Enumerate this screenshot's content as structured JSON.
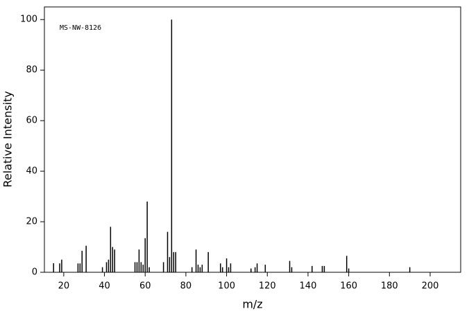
{
  "chart_data": {
    "type": "stem",
    "annotation": "MS-NW-8126",
    "x_label": "m/z",
    "y_label": "Relative Intensity",
    "color": "#000000",
    "x": [
      15,
      18,
      19,
      27,
      28,
      29,
      31,
      39,
      41,
      42,
      43,
      44,
      45,
      55,
      56,
      57,
      58,
      59,
      60,
      61,
      62,
      69,
      71,
      72,
      73,
      74,
      75,
      83,
      85,
      86,
      87,
      88,
      91,
      97,
      98,
      100,
      101,
      102,
      112,
      114,
      115,
      119,
      131,
      132,
      142,
      147,
      148,
      159,
      160,
      190
    ],
    "values": [
      3.6,
      3.5,
      5,
      3.5,
      3.5,
      8.5,
      10.5,
      2,
      4,
      5,
      18,
      10,
      9,
      4,
      4,
      9,
      4,
      3,
      13.5,
      28,
      2,
      4,
      16,
      6,
      100,
      8,
      8,
      2,
      9,
      3,
      2,
      3,
      8,
      3.5,
      2,
      5.5,
      2,
      3.5,
      1.5,
      2,
      3.5,
      3,
      4.5,
      2,
      2.5,
      2.5,
      2.5,
      6.5,
      1.5,
      2
    ],
    "xlim": [
      10.5,
      215
    ],
    "ylim": [
      0,
      105
    ],
    "xticks": [
      20,
      40,
      60,
      80,
      100,
      120,
      140,
      160,
      180,
      200
    ],
    "yticks": [
      0,
      20,
      40,
      60,
      80,
      100
    ]
  }
}
